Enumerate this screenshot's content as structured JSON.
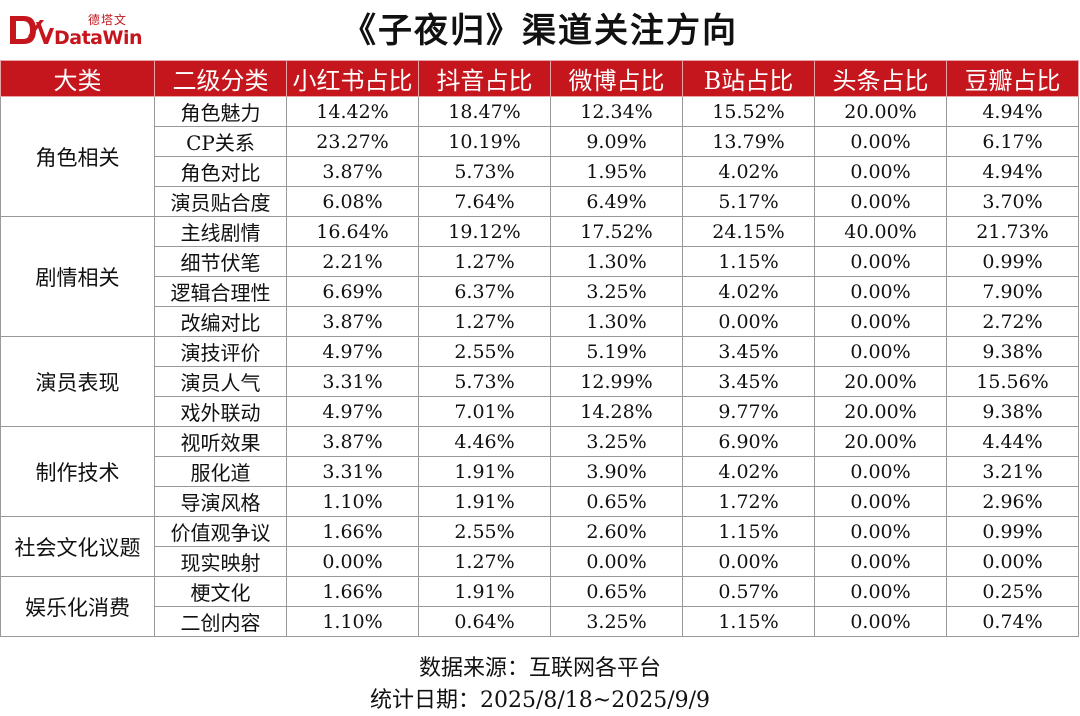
{
  "logo": {
    "chinese": "德塔文",
    "english": "DataWin"
  },
  "title": "《子夜归》渠道关注方向",
  "headers": [
    "大类",
    "二级分类",
    "小红书占比",
    "抖音占比",
    "微博占比",
    "B站占比",
    "头条占比",
    "豆瓣占比"
  ],
  "groups": [
    {
      "name": "角色相关",
      "rows": [
        [
          "角色魅力",
          "14.42%",
          "18.47%",
          "12.34%",
          "15.52%",
          "20.00%",
          "4.94%"
        ],
        [
          "CP关系",
          "23.27%",
          "10.19%",
          "9.09%",
          "13.79%",
          "0.00%",
          "6.17%"
        ],
        [
          "角色对比",
          "3.87%",
          "5.73%",
          "1.95%",
          "4.02%",
          "0.00%",
          "4.94%"
        ],
        [
          "演员贴合度",
          "6.08%",
          "7.64%",
          "6.49%",
          "5.17%",
          "0.00%",
          "3.70%"
        ]
      ]
    },
    {
      "name": "剧情相关",
      "rows": [
        [
          "主线剧情",
          "16.64%",
          "19.12%",
          "17.52%",
          "24.15%",
          "40.00%",
          "21.73%"
        ],
        [
          "细节伏笔",
          "2.21%",
          "1.27%",
          "1.30%",
          "1.15%",
          "0.00%",
          "0.99%"
        ],
        [
          "逻辑合理性",
          "6.69%",
          "6.37%",
          "3.25%",
          "4.02%",
          "0.00%",
          "7.90%"
        ],
        [
          "改编对比",
          "3.87%",
          "1.27%",
          "1.30%",
          "0.00%",
          "0.00%",
          "2.72%"
        ]
      ]
    },
    {
      "name": "演员表现",
      "rows": [
        [
          "演技评价",
          "4.97%",
          "2.55%",
          "5.19%",
          "3.45%",
          "0.00%",
          "9.38%"
        ],
        [
          "演员人气",
          "3.31%",
          "5.73%",
          "12.99%",
          "3.45%",
          "20.00%",
          "15.56%"
        ],
        [
          "戏外联动",
          "4.97%",
          "7.01%",
          "14.28%",
          "9.77%",
          "20.00%",
          "9.38%"
        ]
      ]
    },
    {
      "name": "制作技术",
      "rows": [
        [
          "视听效果",
          "3.87%",
          "4.46%",
          "3.25%",
          "6.90%",
          "20.00%",
          "4.44%"
        ],
        [
          "服化道",
          "3.31%",
          "1.91%",
          "3.90%",
          "4.02%",
          "0.00%",
          "3.21%"
        ],
        [
          "导演风格",
          "1.10%",
          "1.91%",
          "0.65%",
          "1.72%",
          "0.00%",
          "2.96%"
        ]
      ]
    },
    {
      "name": "社会文化议题",
      "rows": [
        [
          "价值观争议",
          "1.66%",
          "2.55%",
          "2.60%",
          "1.15%",
          "0.00%",
          "0.99%"
        ],
        [
          "现实映射",
          "0.00%",
          "1.27%",
          "0.00%",
          "0.00%",
          "0.00%",
          "0.00%"
        ]
      ]
    },
    {
      "name": "娱乐化消费",
      "rows": [
        [
          "梗文化",
          "1.66%",
          "1.91%",
          "0.65%",
          "0.57%",
          "0.00%",
          "0.25%"
        ],
        [
          "二创内容",
          "1.10%",
          "0.64%",
          "3.25%",
          "1.15%",
          "0.00%",
          "0.74%"
        ]
      ]
    }
  ],
  "footer": {
    "source": "数据来源：互联网各平台",
    "period": "统计日期：2025/8/18~2025/9/9"
  },
  "colors": {
    "header_bg": "#c4161c",
    "header_text": "#ffffff",
    "brand": "#c4161c",
    "grid_line": "#999999"
  },
  "icons": [
    "datawin-logo-icon"
  ]
}
